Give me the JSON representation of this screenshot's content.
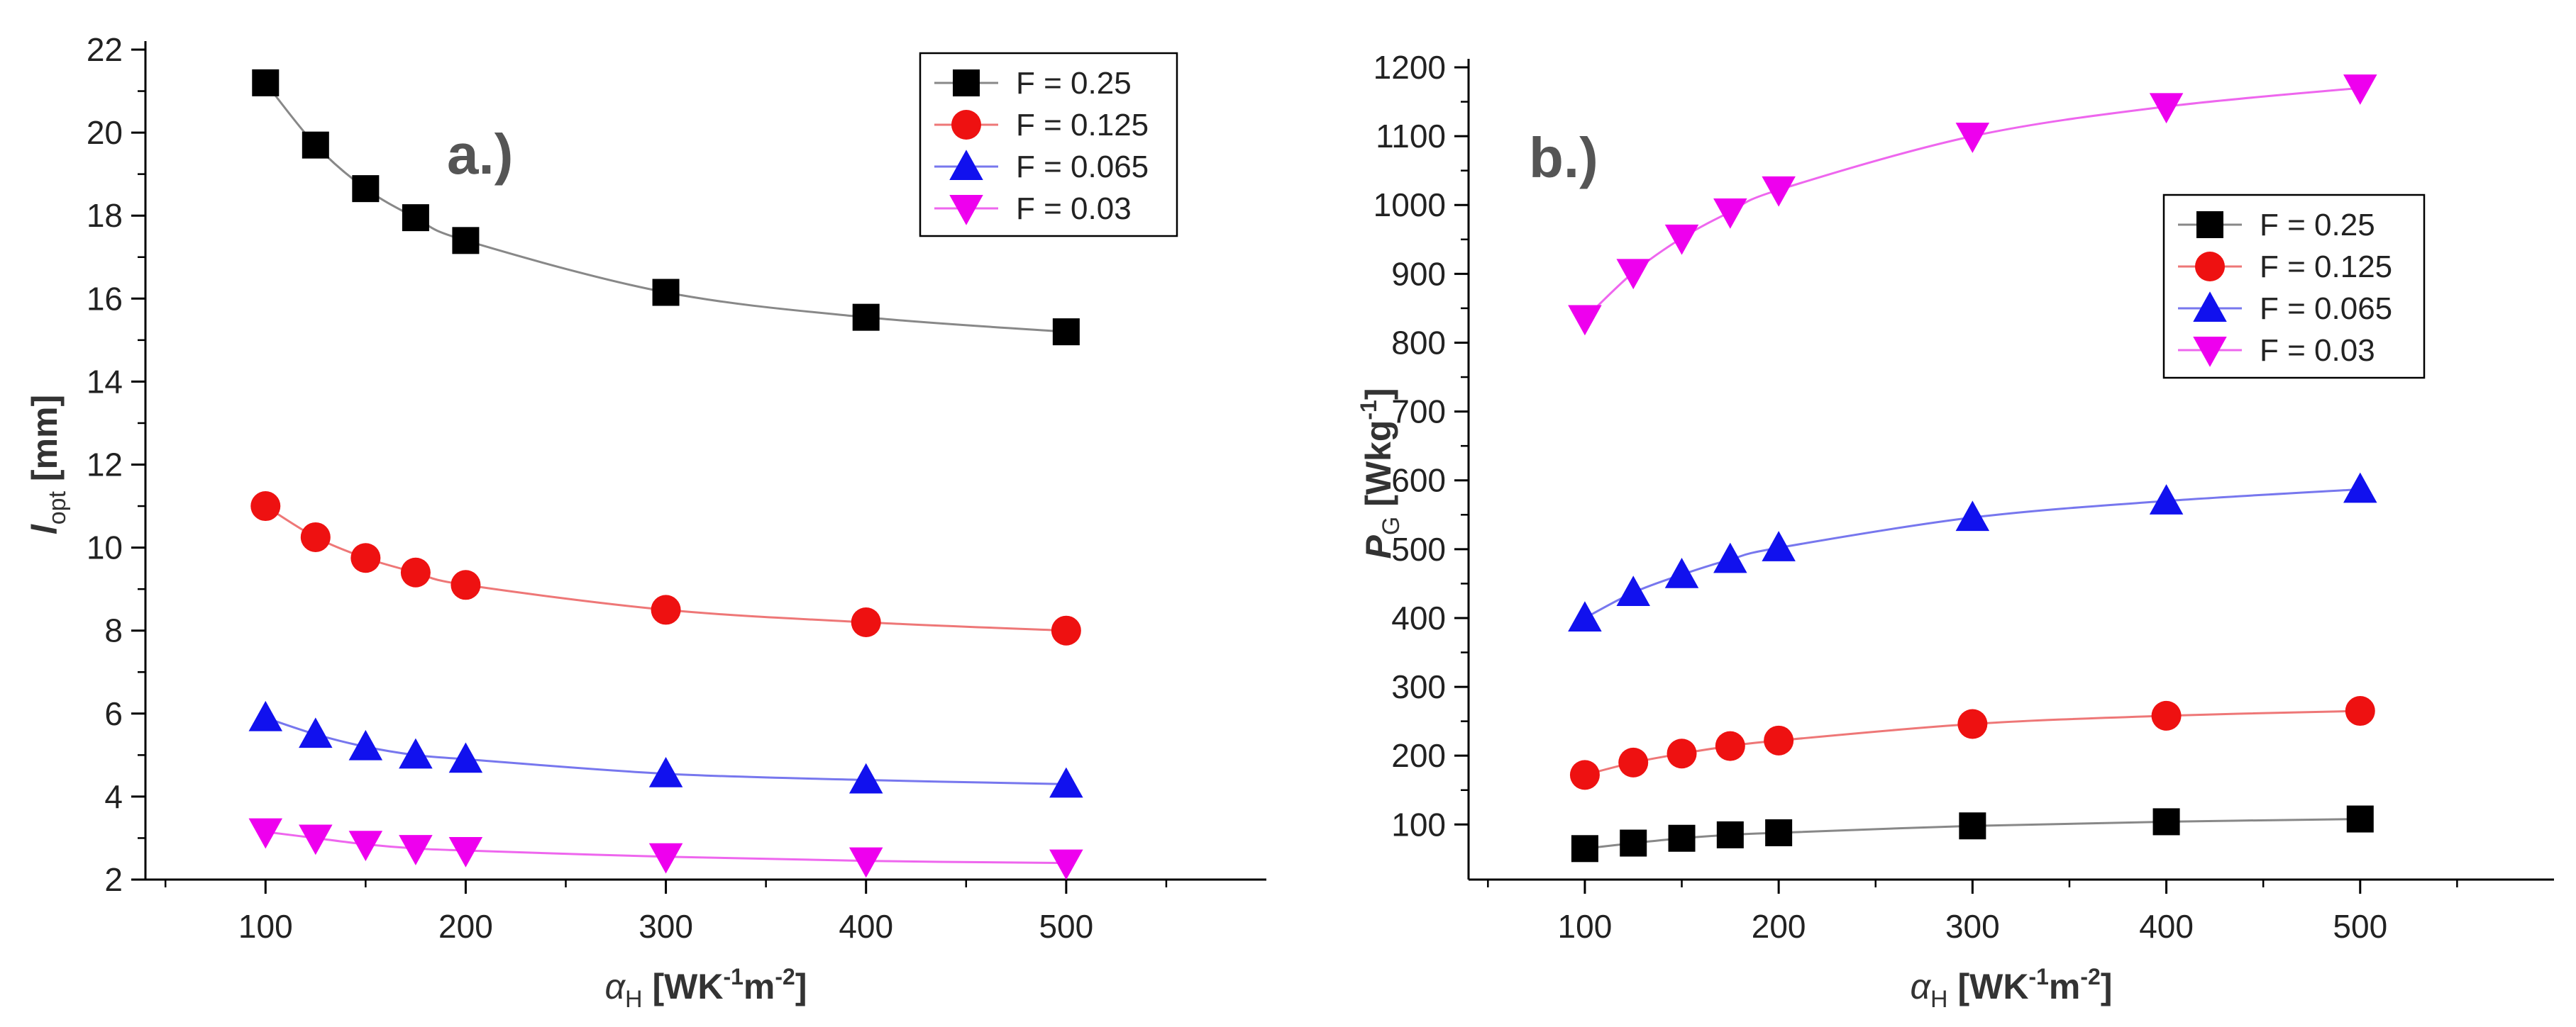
{
  "chart_data": [
    {
      "type": "line",
      "panel_label": "a.)",
      "xlabel": {
        "symbol": "α",
        "sub": "H",
        "unit_pre": " [WK",
        "sup1": "-1",
        "unit_mid": "m",
        "sup2": "-2",
        "unit_post": "]"
      },
      "ylabel": {
        "symbol": "l",
        "sub": "opt",
        "unit": " [mm]"
      },
      "x": [
        100,
        125,
        150,
        175,
        200,
        300,
        400,
        500
      ],
      "xlim": [
        40,
        600
      ],
      "ylim": [
        2,
        22
      ],
      "xticks": [
        100,
        200,
        300,
        400,
        500
      ],
      "yticks": [
        2,
        4,
        6,
        8,
        10,
        12,
        14,
        16,
        18,
        20,
        22
      ],
      "legend_position": "top-right",
      "series": [
        {
          "name": "F = 0.25",
          "color": "#000000",
          "line_color": "#888888",
          "marker": "square",
          "values": [
            21.2,
            19.7,
            18.65,
            17.95,
            17.4,
            16.15,
            15.55,
            15.2
          ]
        },
        {
          "name": "F = 0.125",
          "color": "#ee1111",
          "line_color": "#ee7777",
          "marker": "circle",
          "values": [
            11.0,
            10.25,
            9.75,
            9.4,
            9.1,
            8.5,
            8.2,
            8.0
          ]
        },
        {
          "name": "F = 0.065",
          "color": "#1111ee",
          "line_color": "#7777ee",
          "marker": "triangle-up",
          "values": [
            5.9,
            5.5,
            5.2,
            5.0,
            4.9,
            4.55,
            4.4,
            4.3
          ]
        },
        {
          "name": "F = 0.03",
          "color": "#ee00ee",
          "line_color": "#ee66ee",
          "marker": "triangle-down",
          "values": [
            3.15,
            3.0,
            2.85,
            2.75,
            2.7,
            2.55,
            2.45,
            2.4
          ]
        }
      ]
    },
    {
      "type": "line",
      "panel_label": "b.)",
      "xlabel": {
        "symbol": "α",
        "sub": "H",
        "unit_pre": " [WK",
        "sup1": "-1",
        "unit_mid": "m",
        "sup2": "-2",
        "unit_post": "]"
      },
      "ylabel": {
        "symbol": "P",
        "sub": "G",
        "unit_pre": " [Wkg",
        "sup": "-1",
        "unit_post": "]"
      },
      "x": [
        100,
        125,
        150,
        175,
        200,
        300,
        400,
        500
      ],
      "xlim": [
        40,
        600
      ],
      "ylim": [
        20,
        1200
      ],
      "xticks": [
        100,
        200,
        300,
        400,
        500
      ],
      "yticks": [
        100,
        200,
        300,
        400,
        500,
        600,
        700,
        800,
        900,
        1000,
        1100,
        1200
      ],
      "legend_position": "top-right",
      "series": [
        {
          "name": "F = 0.25",
          "color": "#000000",
          "line_color": "#888888",
          "marker": "square",
          "values": [
            65,
            73,
            80,
            85,
            88,
            98,
            104,
            108
          ]
        },
        {
          "name": "F = 0.125",
          "color": "#ee1111",
          "line_color": "#ee7777",
          "marker": "circle",
          "values": [
            172,
            190,
            203,
            214,
            222,
            246,
            258,
            265
          ]
        },
        {
          "name": "F = 0.065",
          "color": "#1111ee",
          "line_color": "#7777ee",
          "marker": "triangle-up",
          "values": [
            400,
            437,
            463,
            485,
            502,
            546,
            570,
            587
          ]
        },
        {
          "name": "F = 0.03",
          "color": "#ee00ee",
          "line_color": "#ee66ee",
          "marker": "triangle-down",
          "values": [
            835,
            902,
            952,
            990,
            1022,
            1100,
            1143,
            1170
          ]
        }
      ]
    }
  ]
}
